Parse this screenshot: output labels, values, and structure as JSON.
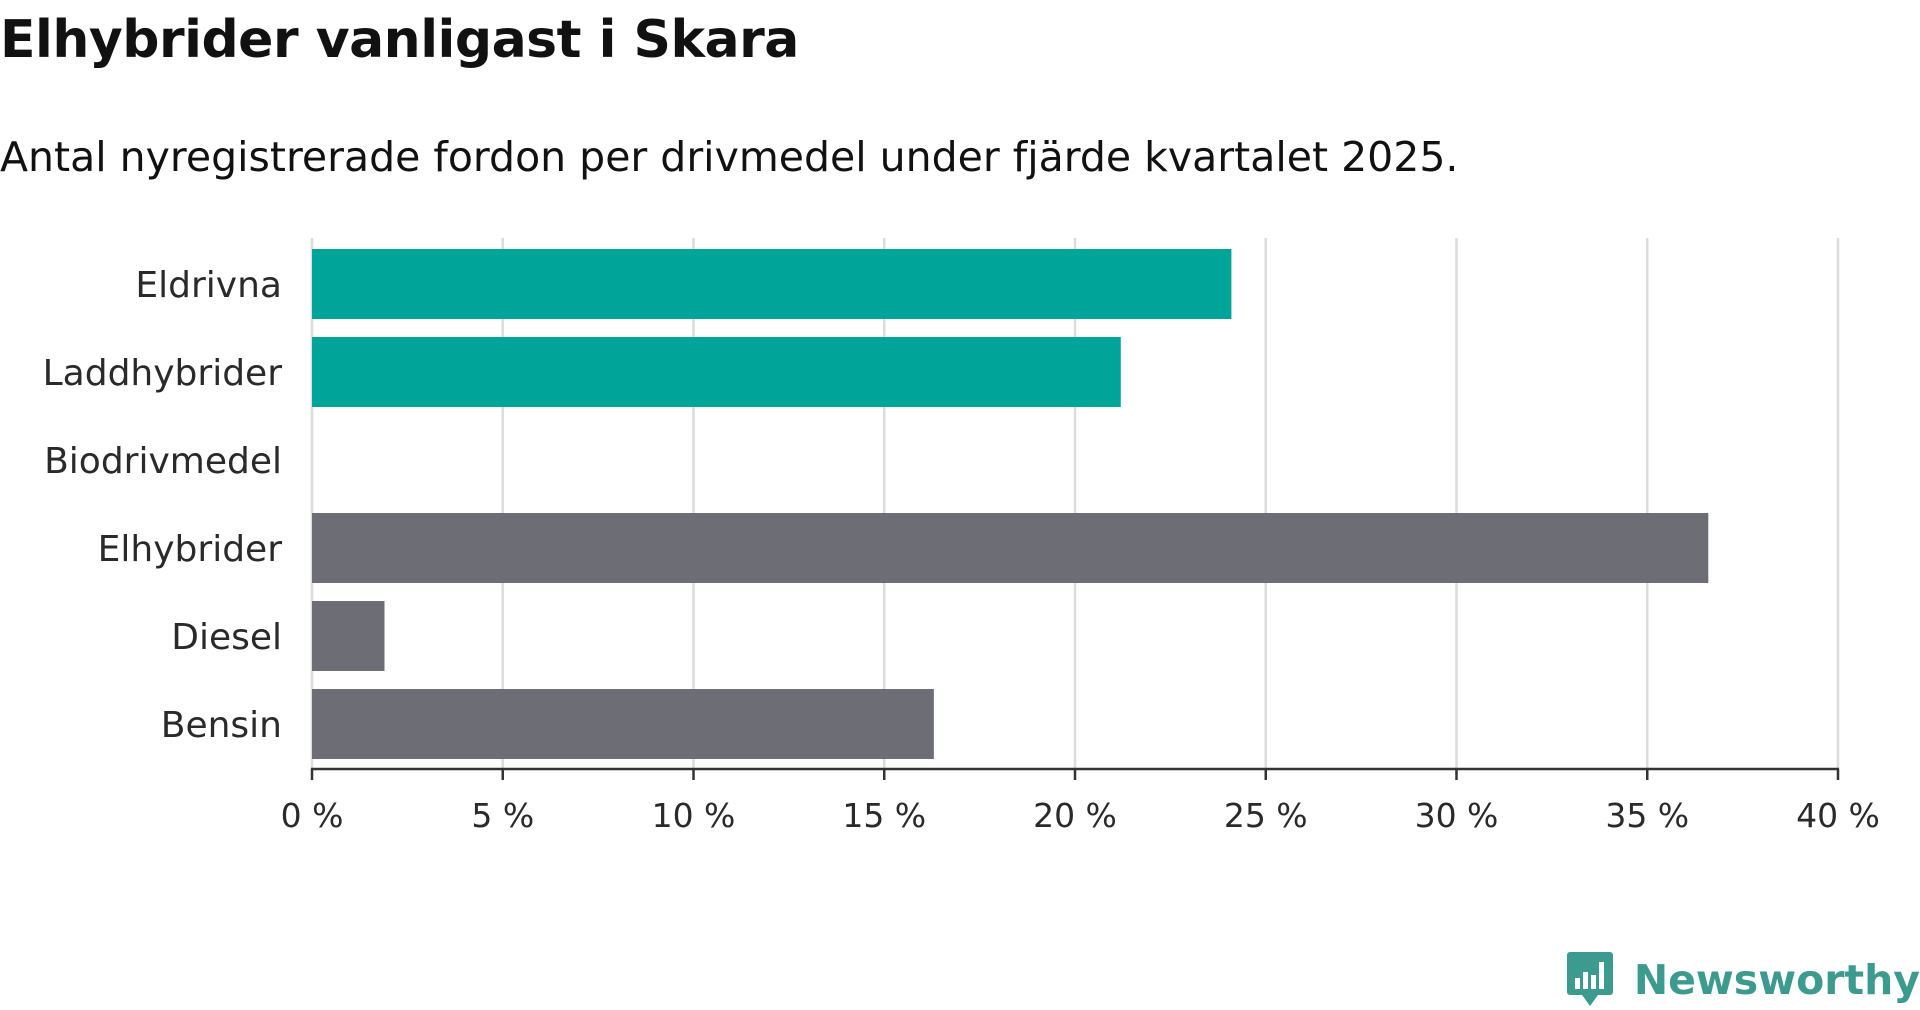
{
  "title": "Elhybrider vanligast i Skara",
  "subtitle": "Antal nyregistrerade fordon per drivmedel under fjärde kvartalet 2025.",
  "brand": {
    "name": "Newsworthy",
    "color": "#3c9b8e"
  },
  "chart_data": {
    "type": "bar",
    "orientation": "horizontal",
    "title": "Elhybrider vanligast i Skara",
    "subtitle": "Antal nyregistrerade fordon per drivmedel under fjärde kvartalet 2025.",
    "xlabel": "",
    "ylabel": "",
    "categories": [
      "Eldrivna",
      "Laddhybrider",
      "Biodrivmedel",
      "Elhybrider",
      "Diesel",
      "Bensin"
    ],
    "values": [
      24.1,
      21.2,
      0,
      36.6,
      1.9,
      16.3
    ],
    "unit": "%",
    "colors": [
      "#00a499",
      "#00a499",
      "#00a499",
      "#6d6d75",
      "#6d6d75",
      "#6d6d75"
    ],
    "xlim": [
      0,
      40
    ],
    "ticks": [
      0,
      5,
      10,
      15,
      20,
      25,
      30,
      35,
      40
    ],
    "tick_labels": [
      "0 %",
      "5 %",
      "10 %",
      "15 %",
      "20 %",
      "25 %",
      "30 %",
      "35 %",
      "40 %"
    ],
    "grid": true,
    "legend": "none"
  }
}
